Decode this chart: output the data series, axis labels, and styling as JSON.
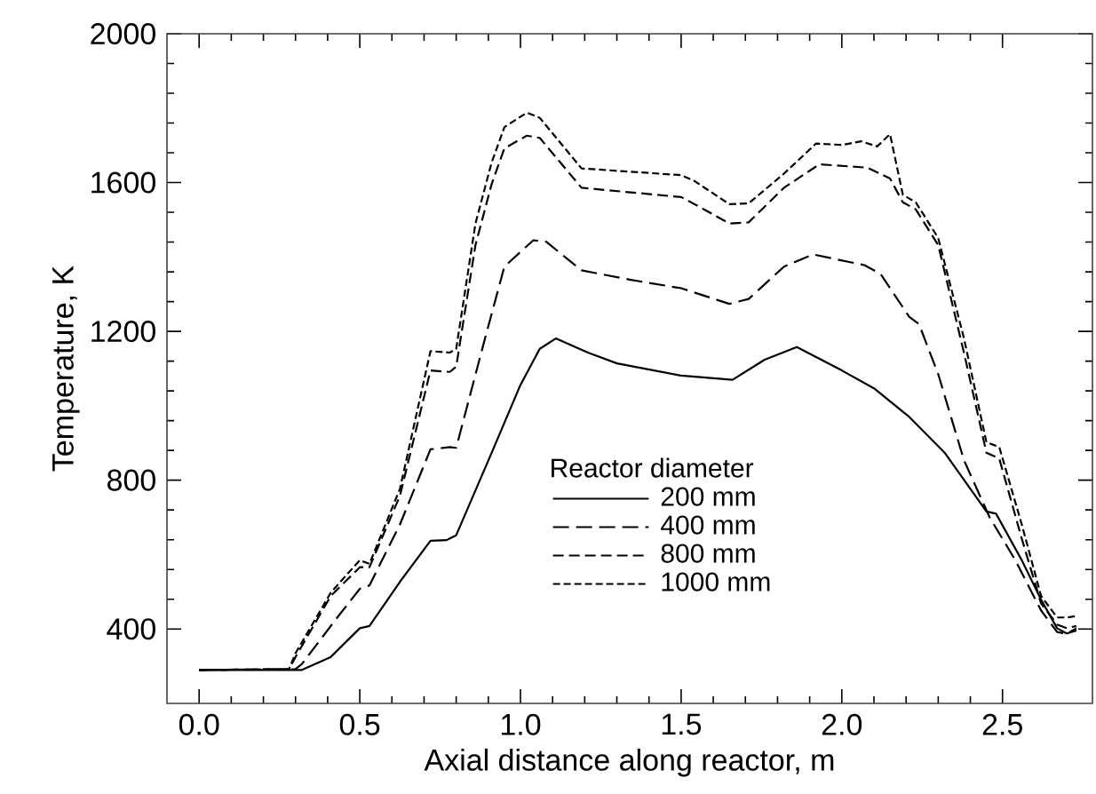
{
  "chart_data": {
    "type": "line",
    "xlabel": "Axial distance along reactor, m",
    "ylabel": "Temperature, K",
    "legend_title": "Reactor diameter",
    "legend": "bottom",
    "grid": false,
    "marker": "none",
    "xlim": [
      -0.1,
      2.78
    ],
    "xticks": [
      {
        "value": 0,
        "label": "0.0"
      },
      0.5,
      {
        "value": 1,
        "label": "1.0"
      },
      1.5,
      {
        "value": 2,
        "label": "2.0"
      },
      2.5
    ],
    "ylim": [
      200,
      2000
    ],
    "yticks": [
      400,
      800,
      1200,
      1600,
      2000
    ],
    "series": [
      {
        "name": "200 mm",
        "color": "#000000",
        "line_style": "solid",
        "x": [
          0,
          0.32,
          0.41,
          0.5,
          0.53,
          0.625,
          0.72,
          0.77,
          0.8,
          0.91,
          1.0,
          1.06,
          1.11,
          1.21,
          1.3,
          1.5,
          1.66,
          1.76,
          1.86,
          2.0,
          2.1,
          2.21,
          2.32,
          2.4,
          2.45,
          2.48,
          2.56,
          2.62,
          2.67,
          2.7,
          2.73
        ],
        "values": [
          290,
          290,
          325,
          402,
          408,
          527,
          637,
          639,
          652,
          873,
          1056,
          1153,
          1181,
          1143,
          1114,
          1081,
          1070,
          1124,
          1158,
          1095,
          1047,
          970,
          874,
          777,
          716,
          710,
          585,
          479,
          402,
          388,
          396
        ]
      },
      {
        "name": "400 mm",
        "color": "#000000",
        "line_style": "dashed",
        "x": [
          0,
          0.3,
          0.32,
          0.43,
          0.5,
          0.53,
          0.625,
          0.72,
          0.78,
          0.8,
          0.89,
          0.95,
          1.04,
          1.08,
          1.19,
          1.34,
          1.5,
          1.65,
          1.71,
          1.82,
          1.91,
          2.07,
          2.12,
          2.21,
          2.24,
          2.3,
          2.38,
          2.46,
          2.54,
          2.62,
          2.67,
          2.7,
          2.73
        ],
        "values": [
          290,
          292,
          306,
          431,
          508,
          517,
          681,
          883,
          889,
          887,
          1182,
          1374,
          1445,
          1441,
          1364,
          1339,
          1316,
          1274,
          1287,
          1374,
          1407,
          1378,
          1355,
          1239,
          1220,
          1085,
          854,
          700,
          585,
          450,
          392,
          387,
          402
        ]
      },
      {
        "name": "800 mm",
        "color": "#000000",
        "line_style": "dashed",
        "x": [
          0,
          0.28,
          0.3,
          0.41,
          0.5,
          0.53,
          0.625,
          0.72,
          0.78,
          0.8,
          0.86,
          0.91,
          0.95,
          1.02,
          1.06,
          1.19,
          1.5,
          1.55,
          1.65,
          1.71,
          1.82,
          1.93,
          2.08,
          2.15,
          2.19,
          2.23,
          2.3,
          2.38,
          2.45,
          2.49,
          2.56,
          2.62,
          2.67,
          2.7,
          2.73
        ],
        "values": [
          290,
          292,
          325,
          489,
          566,
          566,
          758,
          1095,
          1091,
          1105,
          1432,
          1595,
          1692,
          1726,
          1720,
          1586,
          1561,
          1538,
          1490,
          1493,
          1586,
          1649,
          1640,
          1611,
          1547,
          1528,
          1432,
          1143,
          874,
          858,
          643,
          469,
          412,
          402,
          408
        ]
      },
      {
        "name": "1000 mm",
        "color": "#000000",
        "line_style": "dashed",
        "x": [
          0,
          0.28,
          0.3,
          0.41,
          0.5,
          0.53,
          0.625,
          0.72,
          0.78,
          0.8,
          0.86,
          0.91,
          0.95,
          1.02,
          1.06,
          1.19,
          1.5,
          1.54,
          1.65,
          1.71,
          1.82,
          1.92,
          2.0,
          2.06,
          2.11,
          2.15,
          2.19,
          2.23,
          2.3,
          2.38,
          2.45,
          2.49,
          2.56,
          2.62,
          2.67,
          2.7,
          2.73
        ],
        "values": [
          290,
          292,
          335,
          498,
          585,
          575,
          777,
          1147,
          1143,
          1153,
          1490,
          1653,
          1749,
          1788,
          1774,
          1638,
          1620,
          1605,
          1542,
          1544,
          1624,
          1705,
          1701,
          1711,
          1697,
          1730,
          1567,
          1547,
          1451,
          1182,
          902,
          889,
          681,
          489,
          431,
          431,
          435
        ]
      }
    ]
  }
}
